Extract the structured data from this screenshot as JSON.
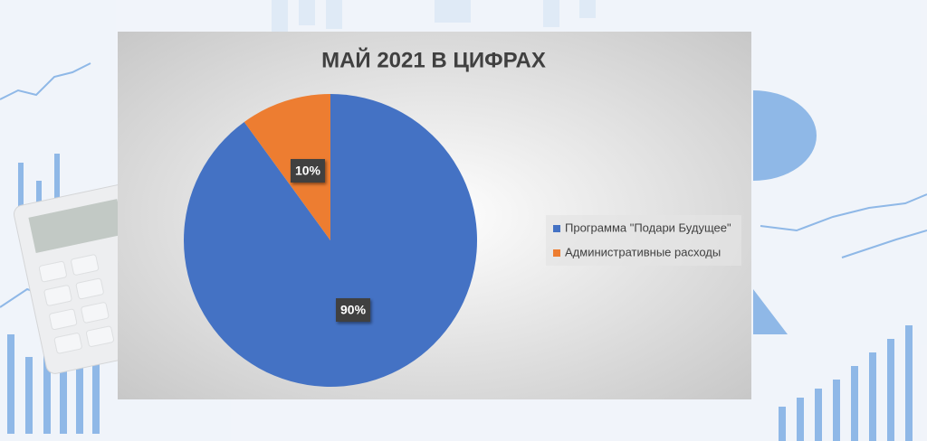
{
  "chart_data": {
    "type": "pie",
    "title": "МАЙ 2021 В ЦИФРАХ",
    "categories": [
      "Программа \"Подари Будущее\"",
      "Административные расходы"
    ],
    "values": [
      90,
      10
    ],
    "value_labels": [
      "90%",
      "10%"
    ],
    "colors": [
      "#4472c4",
      "#ed7d31"
    ],
    "legend": "right"
  }
}
